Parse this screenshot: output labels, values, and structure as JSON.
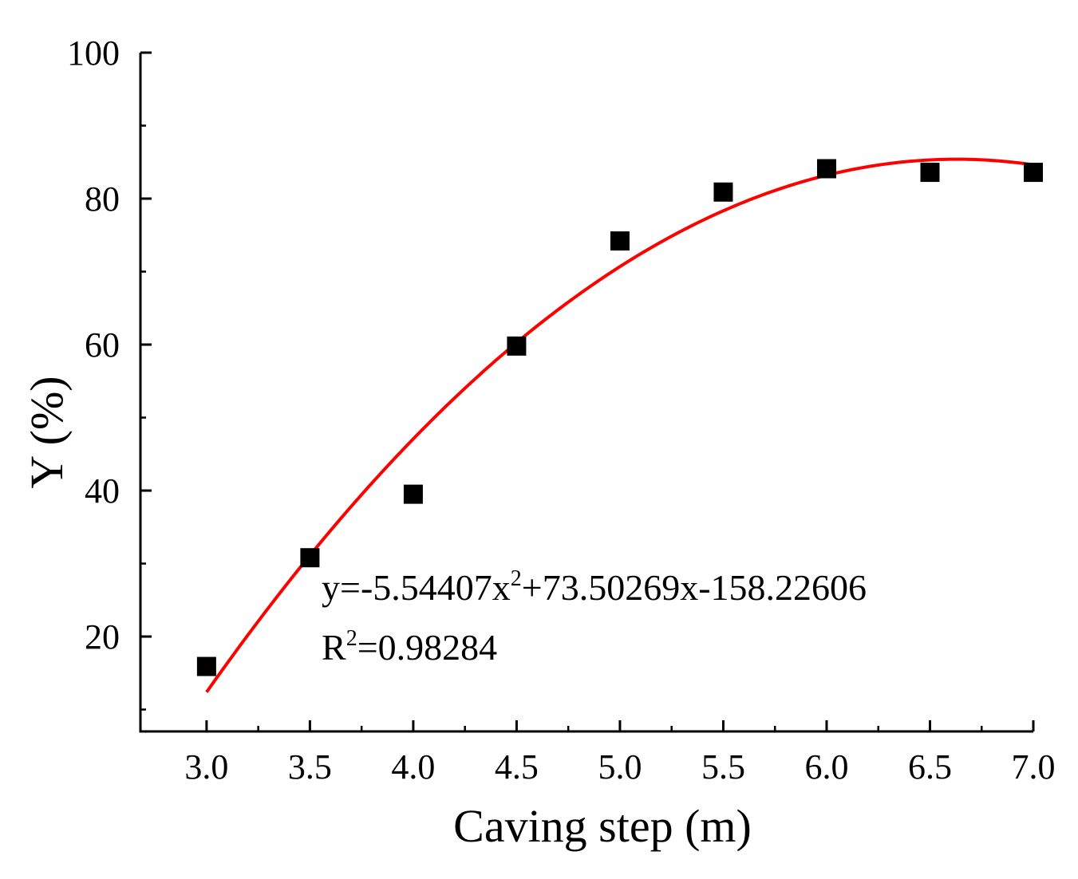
{
  "chart_data": {
    "type": "scatter",
    "xlabel": "Caving step (m)",
    "ylabel": "Y (%)",
    "xlim": [
      2.68,
      7.0
    ],
    "ylim": [
      7,
      100
    ],
    "xticks": [
      "3.0",
      "3.5",
      "4.0",
      "4.5",
      "5.0",
      "5.5",
      "6.0",
      "6.5",
      "7.0"
    ],
    "yticks": [
      "20",
      "40",
      "60",
      "80",
      "100"
    ],
    "grid": false,
    "series": [
      {
        "kind": "scatter",
        "marker": "square",
        "color": "#000000",
        "x": [
          3.0,
          3.5,
          4.0,
          4.5,
          5.0,
          5.5,
          6.0,
          6.5,
          7.0
        ],
        "y": [
          15.9,
          30.8,
          39.5,
          59.8,
          74.2,
          80.9,
          84.1,
          83.6,
          83.6
        ]
      },
      {
        "kind": "fit",
        "color": "#ff0000",
        "coefficients": {
          "a": -5.54407,
          "b": 73.50269,
          "c": -158.22606
        },
        "x_range": [
          3.0,
          7.0
        ]
      }
    ],
    "annotation": {
      "eq_prefix": "y=-5.54407x",
      "eq_sup": "2",
      "eq_suffix": "+73.50269x-158.22606",
      "r2_prefix": "R",
      "r2_sup": "2",
      "r2_suffix": "=0.98284"
    }
  }
}
